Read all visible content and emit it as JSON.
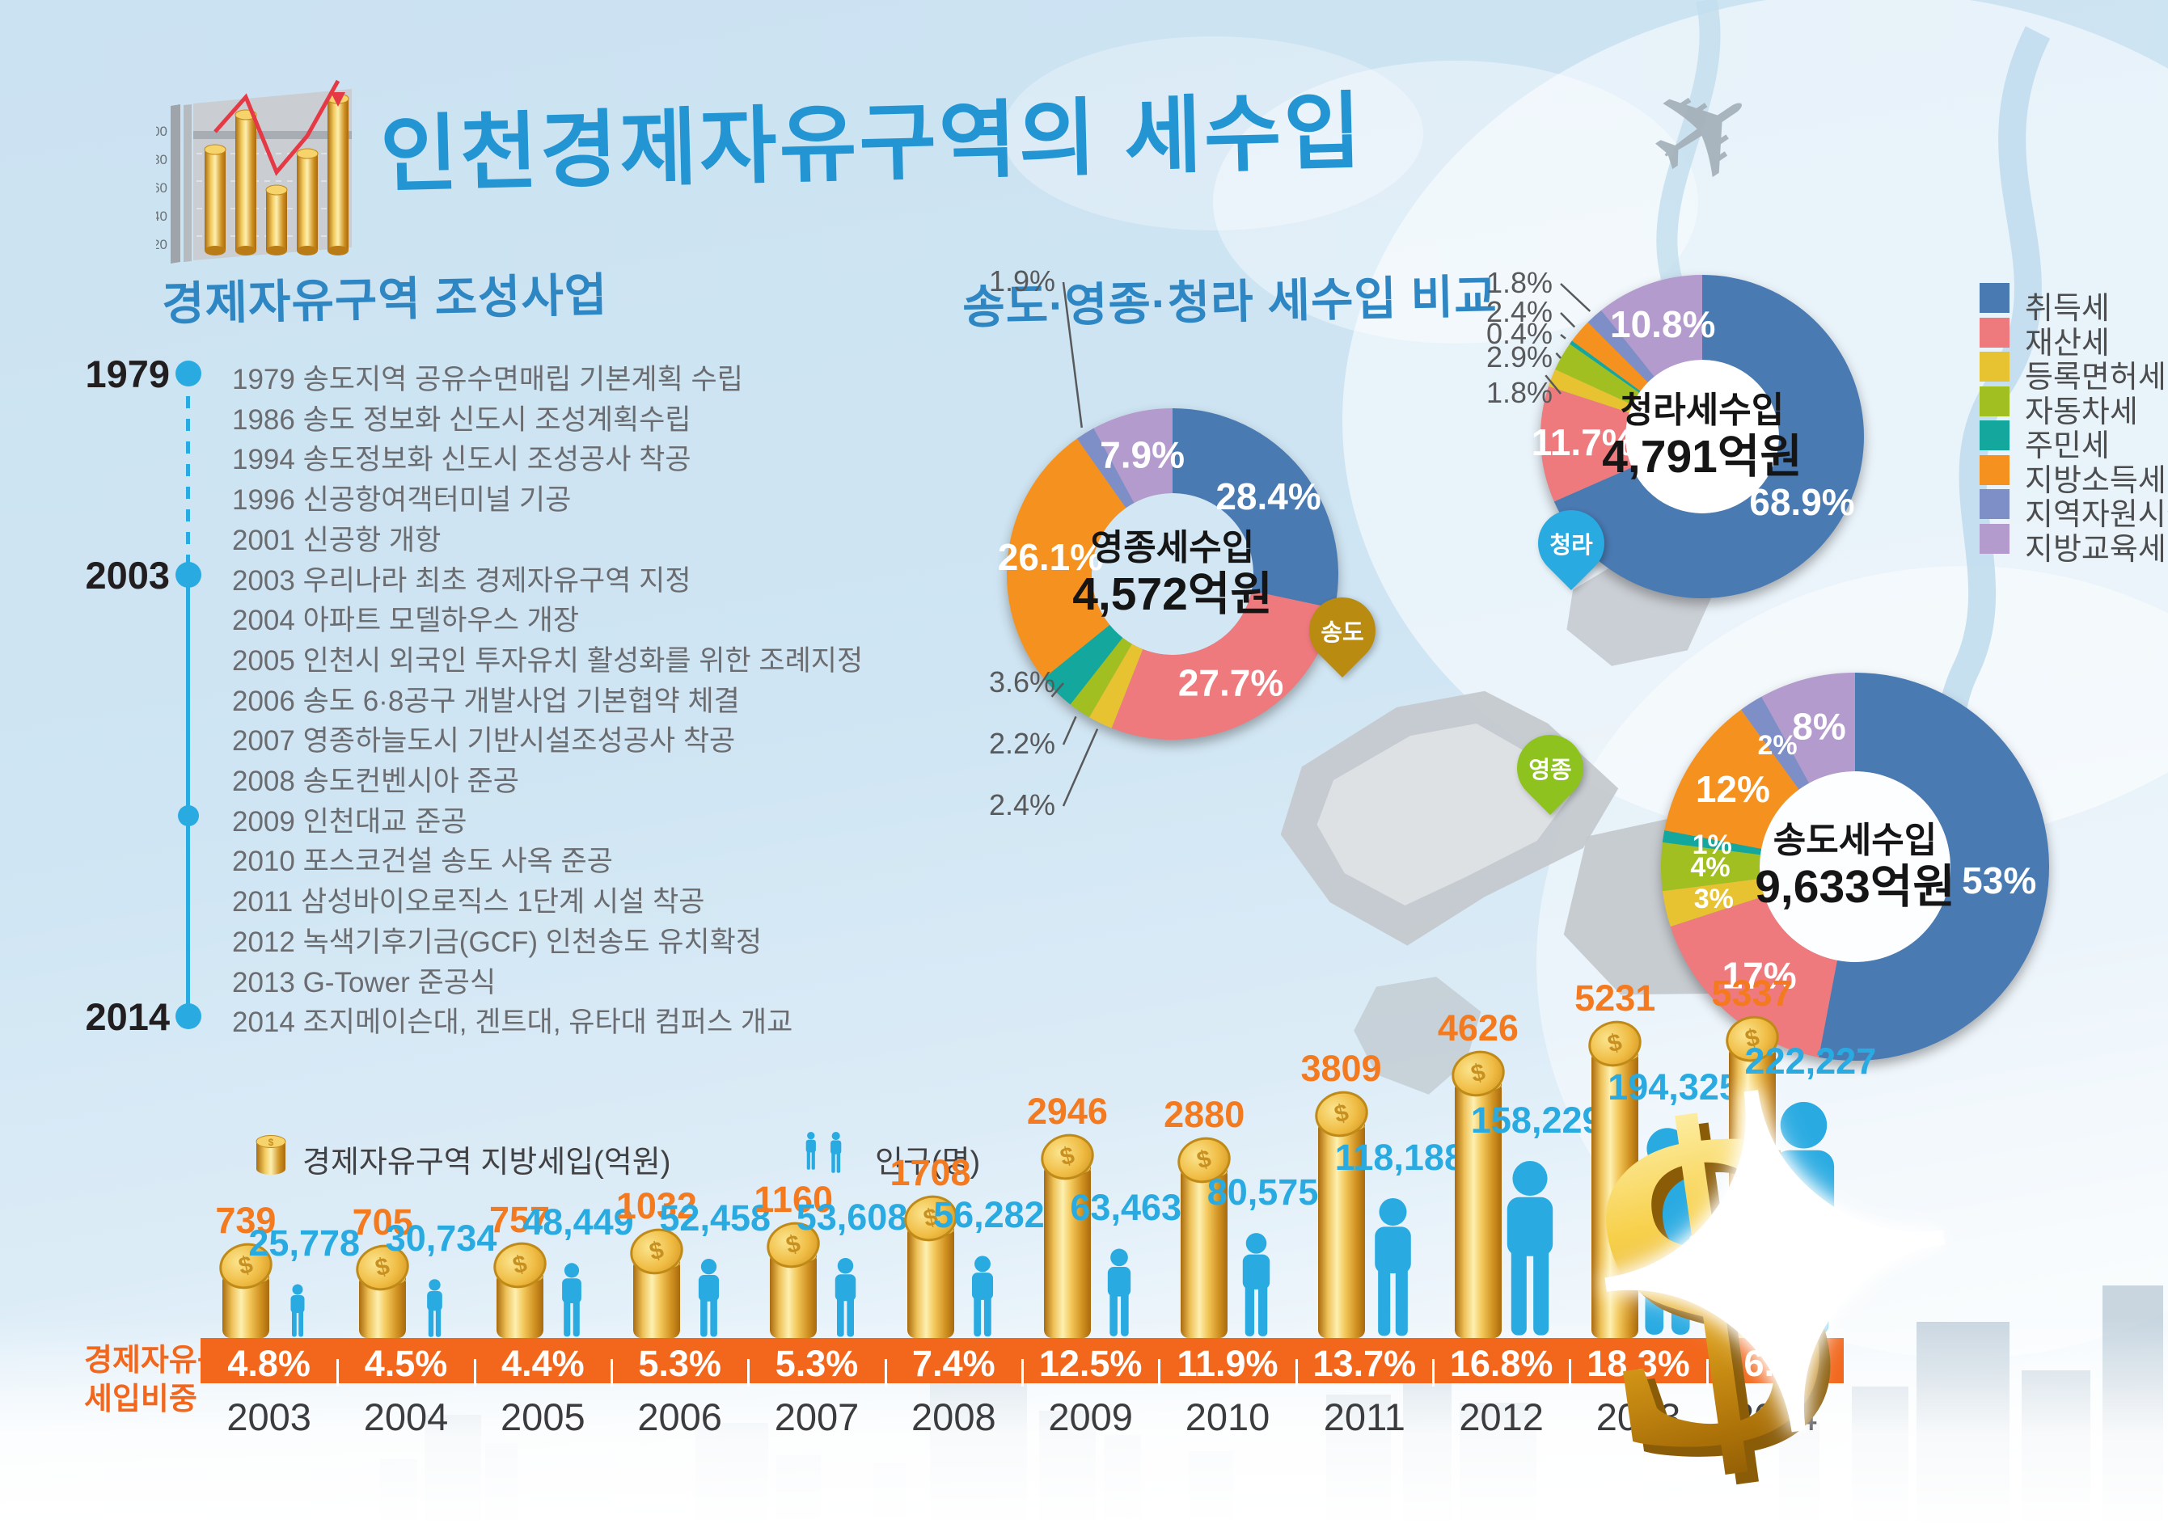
{
  "header": {
    "title": "인천경제자유구역의 세수입",
    "icon_axis_labels": [
      "100",
      "80",
      "60",
      "40",
      "20"
    ]
  },
  "timeline": {
    "heading": "경제자유구역 조성사업",
    "items": [
      {
        "year": "1979",
        "dot": true,
        "text": "1979 송도지역 공유수면매립 기본계획 수립"
      },
      {
        "text": "1986 송도 정보화 신도시 조성계획수립"
      },
      {
        "text": "1994 송도정보화 신도시 조성공사 착공"
      },
      {
        "text": "1996 신공항여객터미널 기공"
      },
      {
        "text": "2001 신공항 개항"
      },
      {
        "year": "2003",
        "dot": true,
        "text": "2003 우리나라 최초 경제자유구역 지정"
      },
      {
        "text": "2004 아파트 모델하우스 개장"
      },
      {
        "text": "2005 인천시 외국인 투자유치 활성화를 위한 조례지정"
      },
      {
        "text": "2006 송도 6·8공구 개발사업 기본협약 체결"
      },
      {
        "text": "2007 영종하늘도시 기반시설조성공사 착공"
      },
      {
        "text": "2008 송도컨벤시아 준공"
      },
      {
        "dot": true,
        "text": "2009 인천대교 준공"
      },
      {
        "text": "2010 포스코건설 송도 사옥 준공"
      },
      {
        "text": "2011 삼성바이오로직스 1단계 시설 착공"
      },
      {
        "text": "2012 녹색기후기금(GCF) 인천송도 유치확정"
      },
      {
        "text": "2013 G-Tower 준공식"
      },
      {
        "year": "2014",
        "dot": true,
        "text": "2014 조지메이슨대, 겐트대, 유타대 컴퍼스 개교"
      }
    ]
  },
  "comparison": {
    "heading": "송도·영종·청라 세수입 비교",
    "legend": [
      {
        "label": "취득세",
        "color": "#4a7ab2"
      },
      {
        "label": "재산세",
        "color": "#ee7a7e"
      },
      {
        "label": "등록면허세",
        "color": "#e7c231"
      },
      {
        "label": "자동차세",
        "color": "#a2bf21"
      },
      {
        "label": "주민세",
        "color": "#14a79d"
      },
      {
        "label": "지방소득세",
        "color": "#f5921f"
      },
      {
        "label": "지역자원시설세",
        "color": "#7d8fc6"
      },
      {
        "label": "지방교육세",
        "color": "#b49bce"
      }
    ],
    "map_pins": [
      {
        "label": "송도",
        "color": "#b98b10"
      },
      {
        "label": "영종",
        "color": "#8dc21f"
      },
      {
        "label": "청라",
        "color": "#29abe2"
      }
    ]
  },
  "chart_data": [
    {
      "type": "pie",
      "variant": "donut",
      "title": "영종세수입",
      "center_value": "4,572억원",
      "unit": "%",
      "labels": [
        "취득세",
        "재산세",
        "등록면허세",
        "자동차세",
        "주민세",
        "지방소득세",
        "지역자원시설세",
        "지방교육세"
      ],
      "values": [
        28.4,
        27.7,
        2.4,
        2.2,
        3.6,
        26.1,
        1.9,
        7.9
      ],
      "value_labels": [
        "28.4%",
        "27.7%",
        "2.4%",
        "2.2%",
        "3.6%",
        "26.1%",
        "1.9%",
        "7.9%"
      ]
    },
    {
      "type": "pie",
      "variant": "donut",
      "title": "청라세수입",
      "center_value": "4,791억원",
      "unit": "%",
      "labels": [
        "취득세",
        "재산세",
        "등록면허세",
        "자동차세",
        "주민세",
        "지방소득세",
        "지역자원시설세",
        "지방교육세"
      ],
      "values": [
        68.9,
        11.7,
        1.8,
        2.9,
        0.4,
        2.4,
        1.8,
        10.8
      ],
      "value_labels": [
        "68.9%",
        "11.7%",
        "1.8%",
        "2.9%",
        "0.4%",
        "2.4%",
        "1.8%",
        "10.8%"
      ]
    },
    {
      "type": "pie",
      "variant": "donut",
      "title": "송도세수입",
      "center_value": "9,633억원",
      "unit": "%",
      "labels": [
        "취득세",
        "재산세",
        "등록면허세",
        "자동차세",
        "주민세",
        "지방소득세",
        "지역자원시설세",
        "지방교육세"
      ],
      "values": [
        53,
        17,
        3,
        4,
        1,
        12,
        2,
        8
      ],
      "value_labels": [
        "53%",
        "17%",
        "3%",
        "4%",
        "1%",
        "12%",
        "2%",
        "8%"
      ]
    },
    {
      "type": "bar",
      "categories": [
        "2003",
        "2004",
        "2005",
        "2006",
        "2007",
        "2008",
        "2009",
        "2010",
        "2011",
        "2012",
        "2013",
        "2014"
      ],
      "series": [
        {
          "name": "경제자유구역 지방세입(억원)",
          "values": [
            739,
            705,
            757,
            1032,
            1160,
            1708,
            2946,
            2880,
            3809,
            4626,
            5231,
            5337
          ],
          "value_labels": [
            "739",
            "705",
            "757",
            "1032",
            "1160",
            "1708",
            "2946",
            "2880",
            "3809",
            "4626",
            "5231",
            "5337"
          ]
        },
        {
          "name": "인구(명)",
          "values": [
            25778,
            30734,
            48449,
            52458,
            53608,
            56282,
            63463,
            80575,
            118188,
            158229,
            194325,
            222227
          ],
          "value_labels": [
            "25,778",
            "30,734",
            "48,449",
            "52,458",
            "53,608",
            "56,282",
            "63,463",
            "80,575",
            "118,188",
            "158,229",
            "194,325",
            "222,227"
          ]
        },
        {
          "name": "경제자유구역 세입비중",
          "values": [
            4.8,
            4.5,
            4.4,
            5.3,
            5.3,
            7.4,
            12.5,
            11.9,
            13.7,
            16.8,
            18.3,
            16.6
          ],
          "value_labels": [
            "4.8%",
            "4.5%",
            "4.4%",
            "5.3%",
            "5.3%",
            "7.4%",
            "12.5%",
            "11.9%",
            "13.7%",
            "16.8%",
            "18.3%",
            "16.6%"
          ]
        }
      ]
    }
  ],
  "bar_section": {
    "legend_revenue": "경제자유구역 지방세입(억원)",
    "legend_population": "인구(명)",
    "band_label_line1": "경제자유구역",
    "band_label_line2": "세입비중"
  },
  "decor": {
    "dollar": "$",
    "plane": "✈",
    "sparkle": "✦"
  }
}
